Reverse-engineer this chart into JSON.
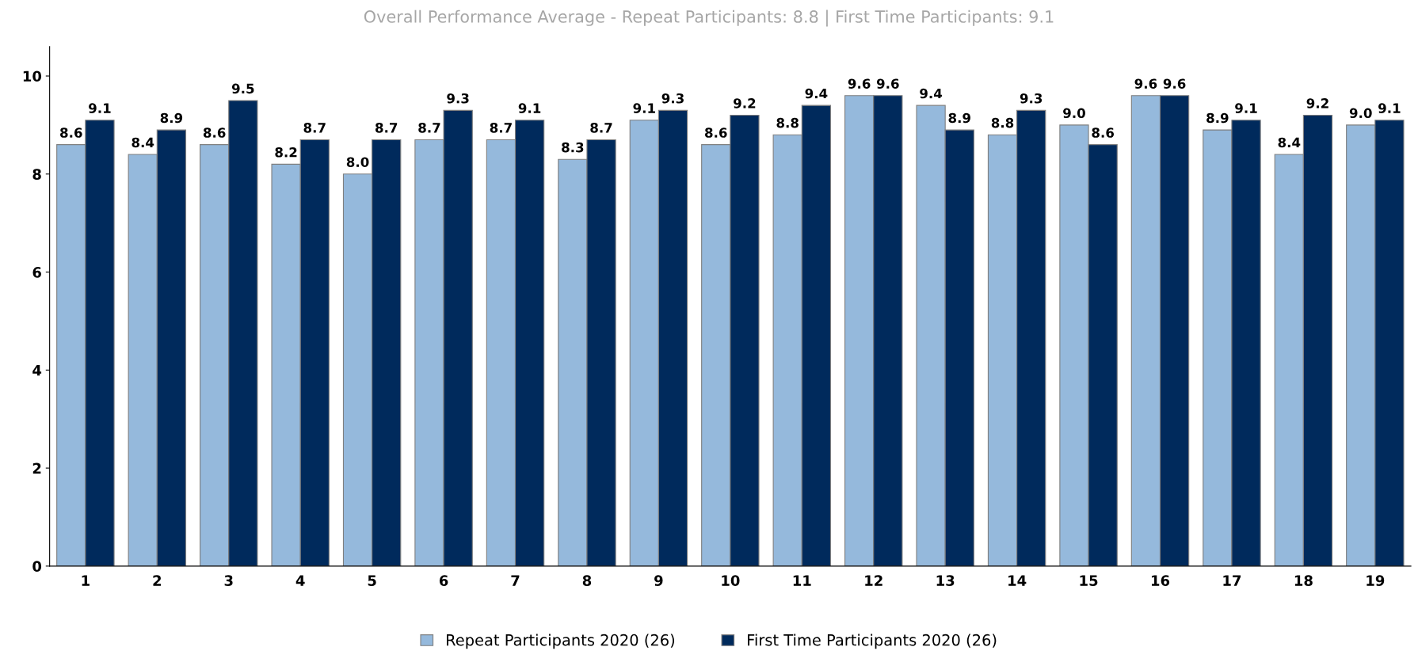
{
  "chart_data": {
    "type": "bar",
    "title": "Overall Performance Average - Repeat Participants: 8.8 | First Time Participants: 9.1",
    "categories": [
      "1",
      "2",
      "3",
      "4",
      "5",
      "6",
      "7",
      "8",
      "9",
      "10",
      "11",
      "12",
      "13",
      "14",
      "15",
      "16",
      "17",
      "18",
      "19"
    ],
    "series": [
      {
        "name": "Repeat Participants 2020 (26)",
        "color": "#95b9dc",
        "values": [
          8.6,
          8.4,
          8.6,
          8.2,
          8.0,
          8.7,
          8.7,
          8.3,
          9.1,
          8.6,
          8.8,
          9.6,
          9.4,
          8.8,
          9.0,
          9.6,
          8.9,
          8.4,
          9.0
        ],
        "value_labels": [
          "8.6",
          "8.4",
          "8.6",
          "8.2",
          "8.0",
          "8.7",
          "8.7",
          "8.3",
          "9.1",
          "8.6",
          "8.8",
          "9.6",
          "9.4",
          "8.8",
          "9.0",
          "9.6",
          "8.9",
          "8.4",
          "9.0"
        ]
      },
      {
        "name": "First Time Participants 2020 (26)",
        "color": "#002a5c",
        "values": [
          9.1,
          8.9,
          9.5,
          8.7,
          8.7,
          9.3,
          9.1,
          8.7,
          9.3,
          9.2,
          9.4,
          9.6,
          8.9,
          9.3,
          8.6,
          9.6,
          9.1,
          9.2,
          9.1
        ],
        "value_labels": [
          "9.1",
          "8.9",
          "9.5",
          "8.7",
          "8.7",
          "9.3",
          "9.1",
          "8.7",
          "9.3",
          "9.2",
          "9.4",
          "9.6",
          "8.9",
          "9.3",
          "8.6",
          "9.6",
          "9.1",
          "9.2",
          "9.1"
        ]
      }
    ],
    "ylim": [
      0,
      10.6
    ],
    "yticks": [
      0,
      2,
      4,
      6,
      8,
      10
    ],
    "legend": "bottom",
    "grid": false
  }
}
